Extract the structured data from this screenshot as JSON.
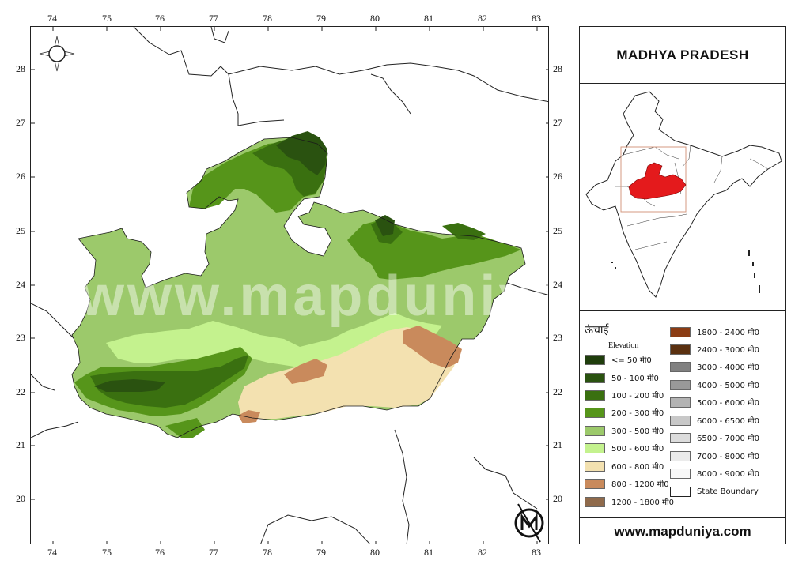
{
  "map": {
    "longitude_ticks": [
      "74",
      "75",
      "76",
      "77",
      "78",
      "79",
      "80",
      "81",
      "82",
      "83"
    ],
    "latitude_ticks": [
      "28",
      "27",
      "26",
      "25",
      "24",
      "23",
      "22",
      "21",
      "20"
    ],
    "watermark": "www.mapduniya.com"
  },
  "panel": {
    "title": "MADHYA PRADESH",
    "website": "www.mapduniya.com",
    "inset_highlight_color": "#e41a1c"
  },
  "legend": {
    "title": "ऊंचाई",
    "subtitle": "Elevation",
    "items": [
      {
        "label": "<= 50 मी0",
        "color": "#1f3d0c"
      },
      {
        "label": "50 - 100 मी0",
        "color": "#2a5210"
      },
      {
        "label": "100 - 200 मी0",
        "color": "#3a7010"
      },
      {
        "label": "200 - 300 मी0",
        "color": "#56951a"
      },
      {
        "label": "300 - 500 मी0",
        "color": "#9cc96b"
      },
      {
        "label": "500 - 600 मी0",
        "color": "#c4f28e"
      },
      {
        "label": "600 - 800 मी0",
        "color": "#f3e1b0"
      },
      {
        "label": "800 - 1200 मी0",
        "color": "#c98a5c"
      },
      {
        "label": "1200 - 1800 मी0",
        "color": "#8f6a4b"
      },
      {
        "label": "1800 - 2400 मी0",
        "color": "#8b3c14"
      },
      {
        "label": "2400 - 3000 मी0",
        "color": "#5a3010"
      },
      {
        "label": "3000 - 4000 मी0",
        "color": "#808080"
      },
      {
        "label": "4000 - 5000 मी0",
        "color": "#999999"
      },
      {
        "label": "5000 - 6000 मी0",
        "color": "#b3b3b3"
      },
      {
        "label": "6000 - 6500 मी0",
        "color": "#c8c8c8"
      },
      {
        "label": "6500 - 7000 मी0",
        "color": "#dcdcdc"
      },
      {
        "label": "7000 - 8000 मी0",
        "color": "#ebebeb"
      },
      {
        "label": "8000 - 9000 मी0",
        "color": "#f7f7f7"
      },
      {
        "label": "State Boundary",
        "color": "#ffffff"
      }
    ]
  }
}
